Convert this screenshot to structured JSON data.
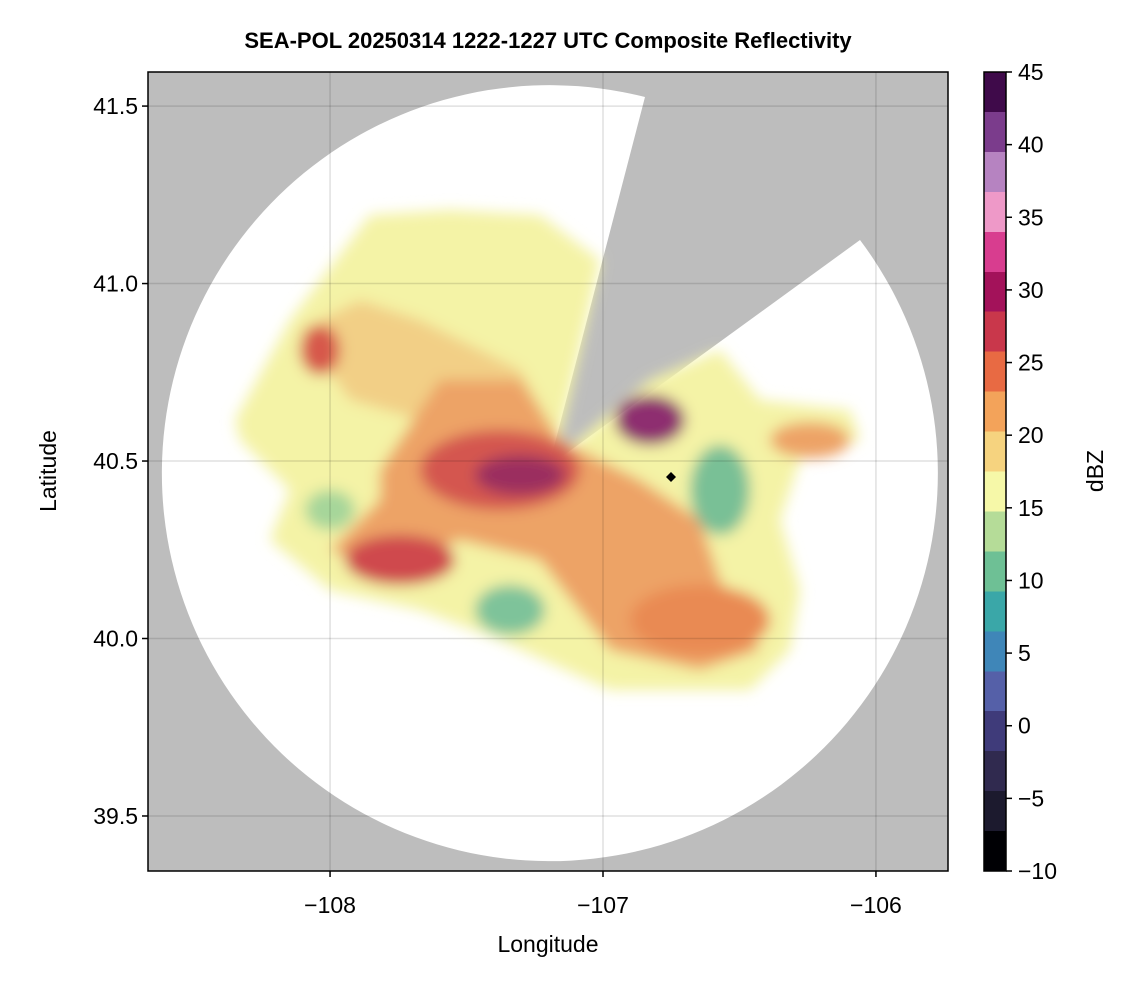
{
  "chart_data": {
    "type": "radar-map",
    "title": "SEA-POL 20250314 1222-1227 UTC Composite Reflectivity",
    "xlabel": "Longitude",
    "ylabel": "Latitude",
    "xlim": [
      -108.667,
      -105.736
    ],
    "ylim": [
      39.345,
      41.596
    ],
    "xticks": [
      {
        "value": -108,
        "label": "−108"
      },
      {
        "value": -107,
        "label": "−107"
      },
      {
        "value": -106,
        "label": "−106"
      }
    ],
    "yticks": [
      39.5,
      {
        "value": 40,
        "label": "40.0"
      },
      40.5,
      {
        "value": 41,
        "label": "41.0"
      },
      41.5
    ],
    "grid": true,
    "colorbar": {
      "label": "dBZ",
      "lim": [
        -10,
        45
      ],
      "ticks": [
        {
          "value": -10,
          "label": "−10"
        },
        {
          "value": -5,
          "label": "−5"
        },
        0,
        5,
        10,
        15,
        20,
        25,
        30,
        35,
        40,
        45
      ],
      "colors": [
        "#000004",
        "#1c1a2e",
        "#302a4f",
        "#3f3b7a",
        "#5560a8",
        "#3f86b8",
        "#3aa7a8",
        "#6ec095",
        "#b5dc98",
        "#f6f8a8",
        "#f6d37f",
        "#f3a35a",
        "#e86a43",
        "#c9374b",
        "#a3125a",
        "#d83d8f",
        "#ee99c8",
        "#b683c1",
        "#7b3c8c",
        "#3f0a4a"
      ]
    }
  }
}
